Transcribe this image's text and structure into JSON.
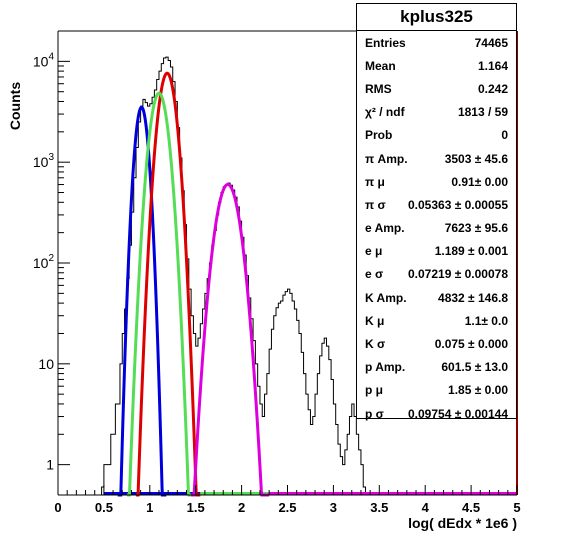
{
  "chart_data": {
    "type": "histogram",
    "xlabel": "log( dEdx * 1e6 )",
    "ylabel": "Counts",
    "xlim": [
      0,
      5
    ],
    "ylim": [
      0.5,
      20000
    ],
    "y_scale": "log",
    "x_ticks": [
      "0",
      "0.5",
      "1",
      "1.5",
      "2",
      "2.5",
      "3",
      "3.5",
      "4",
      "4.5",
      "5"
    ],
    "y_ticks": [
      {
        "base": "1",
        "exp": ""
      },
      {
        "base": "10",
        "exp": ""
      },
      {
        "base": "10",
        "exp": "2"
      },
      {
        "base": "10",
        "exp": "3"
      },
      {
        "base": "10",
        "exp": "4"
      }
    ],
    "histogram": {
      "color": "#000000",
      "bin_width": 0.025,
      "bins": [
        [
          0.475,
          0.6
        ],
        [
          0.5,
          1
        ],
        [
          0.525,
          1
        ],
        [
          0.55,
          1
        ],
        [
          0.575,
          2
        ],
        [
          0.6,
          2
        ],
        [
          0.625,
          4
        ],
        [
          0.65,
          4
        ],
        [
          0.675,
          10
        ],
        [
          0.7,
          20
        ],
        [
          0.725,
          35
        ],
        [
          0.75,
          70
        ],
        [
          0.775,
          150
        ],
        [
          0.8,
          320
        ],
        [
          0.825,
          700
        ],
        [
          0.85,
          1400
        ],
        [
          0.875,
          2500
        ],
        [
          0.9,
          3600
        ],
        [
          0.925,
          4200
        ],
        [
          0.95,
          3900
        ],
        [
          0.975,
          3600
        ],
        [
          1.0,
          3800
        ],
        [
          1.025,
          4400
        ],
        [
          1.05,
          5200
        ],
        [
          1.075,
          6600
        ],
        [
          1.1,
          8000
        ],
        [
          1.125,
          9500
        ],
        [
          1.15,
          10800
        ],
        [
          1.175,
          11000
        ],
        [
          1.2,
          10200
        ],
        [
          1.225,
          8800
        ],
        [
          1.25,
          6300
        ],
        [
          1.275,
          4000
        ],
        [
          1.3,
          2200
        ],
        [
          1.325,
          1100
        ],
        [
          1.35,
          520
        ],
        [
          1.375,
          240
        ],
        [
          1.4,
          110
        ],
        [
          1.425,
          55
        ],
        [
          1.45,
          30
        ],
        [
          1.475,
          20
        ],
        [
          1.5,
          15
        ],
        [
          1.525,
          18
        ],
        [
          1.55,
          25
        ],
        [
          1.575,
          35
        ],
        [
          1.6,
          50
        ],
        [
          1.625,
          70
        ],
        [
          1.65,
          100
        ],
        [
          1.675,
          150
        ],
        [
          1.7,
          210
        ],
        [
          1.725,
          300
        ],
        [
          1.75,
          400
        ],
        [
          1.775,
          500
        ],
        [
          1.8,
          570
        ],
        [
          1.825,
          600
        ],
        [
          1.85,
          620
        ],
        [
          1.875,
          590
        ],
        [
          1.9,
          530
        ],
        [
          1.925,
          450
        ],
        [
          1.95,
          360
        ],
        [
          1.975,
          260
        ],
        [
          2.0,
          180
        ],
        [
          2.025,
          120
        ],
        [
          2.05,
          75
        ],
        [
          2.075,
          45
        ],
        [
          2.1,
          28
        ],
        [
          2.125,
          17
        ],
        [
          2.15,
          10
        ],
        [
          2.175,
          6
        ],
        [
          2.2,
          4
        ],
        [
          2.225,
          3
        ],
        [
          2.25,
          5
        ],
        [
          2.275,
          8
        ],
        [
          2.3,
          14
        ],
        [
          2.325,
          22
        ],
        [
          2.35,
          30
        ],
        [
          2.375,
          36
        ],
        [
          2.4,
          40
        ],
        [
          2.425,
          42
        ],
        [
          2.45,
          48
        ],
        [
          2.475,
          52
        ],
        [
          2.5,
          55
        ],
        [
          2.525,
          50
        ],
        [
          2.55,
          42
        ],
        [
          2.575,
          35
        ],
        [
          2.6,
          27
        ],
        [
          2.625,
          20
        ],
        [
          2.65,
          13
        ],
        [
          2.675,
          8
        ],
        [
          2.7,
          5
        ],
        [
          2.725,
          3.5
        ],
        [
          2.75,
          2.5
        ],
        [
          2.775,
          3
        ],
        [
          2.8,
          5
        ],
        [
          2.825,
          8
        ],
        [
          2.85,
          12
        ],
        [
          2.875,
          16
        ],
        [
          2.9,
          18
        ],
        [
          2.925,
          15
        ],
        [
          2.95,
          11
        ],
        [
          2.975,
          7
        ],
        [
          3.0,
          4
        ],
        [
          3.025,
          2.5
        ],
        [
          3.05,
          1.6
        ],
        [
          3.075,
          1.2
        ],
        [
          3.1,
          1
        ],
        [
          3.125,
          1.4
        ],
        [
          3.15,
          2
        ],
        [
          3.175,
          3
        ],
        [
          3.2,
          4
        ],
        [
          3.225,
          3
        ],
        [
          3.25,
          2
        ],
        [
          3.275,
          1.4
        ],
        [
          3.3,
          1
        ],
        [
          3.325,
          0.6
        ]
      ]
    },
    "fits": [
      {
        "name": "pi",
        "color": "#0000dd",
        "amp": 3503,
        "mu": 0.91,
        "sigma": 0.05363,
        "range": [
          0.65,
          1.18
        ]
      },
      {
        "name": "e",
        "color": "#dd0000",
        "amp": 7623,
        "mu": 1.189,
        "sigma": 0.07219,
        "range": [
          0.85,
          1.55
        ]
      },
      {
        "name": "K",
        "color": "#55dd55",
        "amp": 4832,
        "mu": 1.1,
        "sigma": 0.075,
        "range": [
          0.75,
          1.5
        ]
      },
      {
        "name": "p",
        "color": "#dd00dd",
        "amp": 601.5,
        "mu": 1.85,
        "sigma": 0.09754,
        "range": [
          1.45,
          2.3
        ]
      }
    ],
    "baseline_colors": [
      "#0000dd",
      "#55dd55",
      "#dd00dd"
    ],
    "right_edge_color": "#8b0000",
    "stats": {
      "title": "kplus325",
      "rows": [
        {
          "label": "Entries",
          "value": "74465"
        },
        {
          "label": "Mean",
          "value": "1.164"
        },
        {
          "label": "RMS",
          "value": "0.242"
        },
        {
          "label": "χ² / ndf",
          "value": "1813 / 59"
        },
        {
          "label": "Prob",
          "value": "0"
        },
        {
          "label": "π Amp.",
          "value": "3503 ± 45.6"
        },
        {
          "label": "π μ",
          "value": "0.91± 0.00"
        },
        {
          "label": "π σ",
          "value": "0.05363 ± 0.00055"
        },
        {
          "label": "e Amp.",
          "value": "7623 ± 95.6"
        },
        {
          "label": "e μ",
          "value": "1.189 ± 0.001"
        },
        {
          "label": "e σ",
          "value": "0.07219 ± 0.00078"
        },
        {
          "label": "K Amp.",
          "value": "4832 ± 146.8"
        },
        {
          "label": "K μ",
          "value": "1.1± 0.0"
        },
        {
          "label": "K σ",
          "value": "0.075 ± 0.000"
        },
        {
          "label": "p Amp.",
          "value": "601.5 ± 13.0"
        },
        {
          "label": "p μ",
          "value": "1.85 ± 0.00"
        },
        {
          "label": "p σ",
          "value": "0.09754 ± 0.00144"
        }
      ]
    }
  }
}
